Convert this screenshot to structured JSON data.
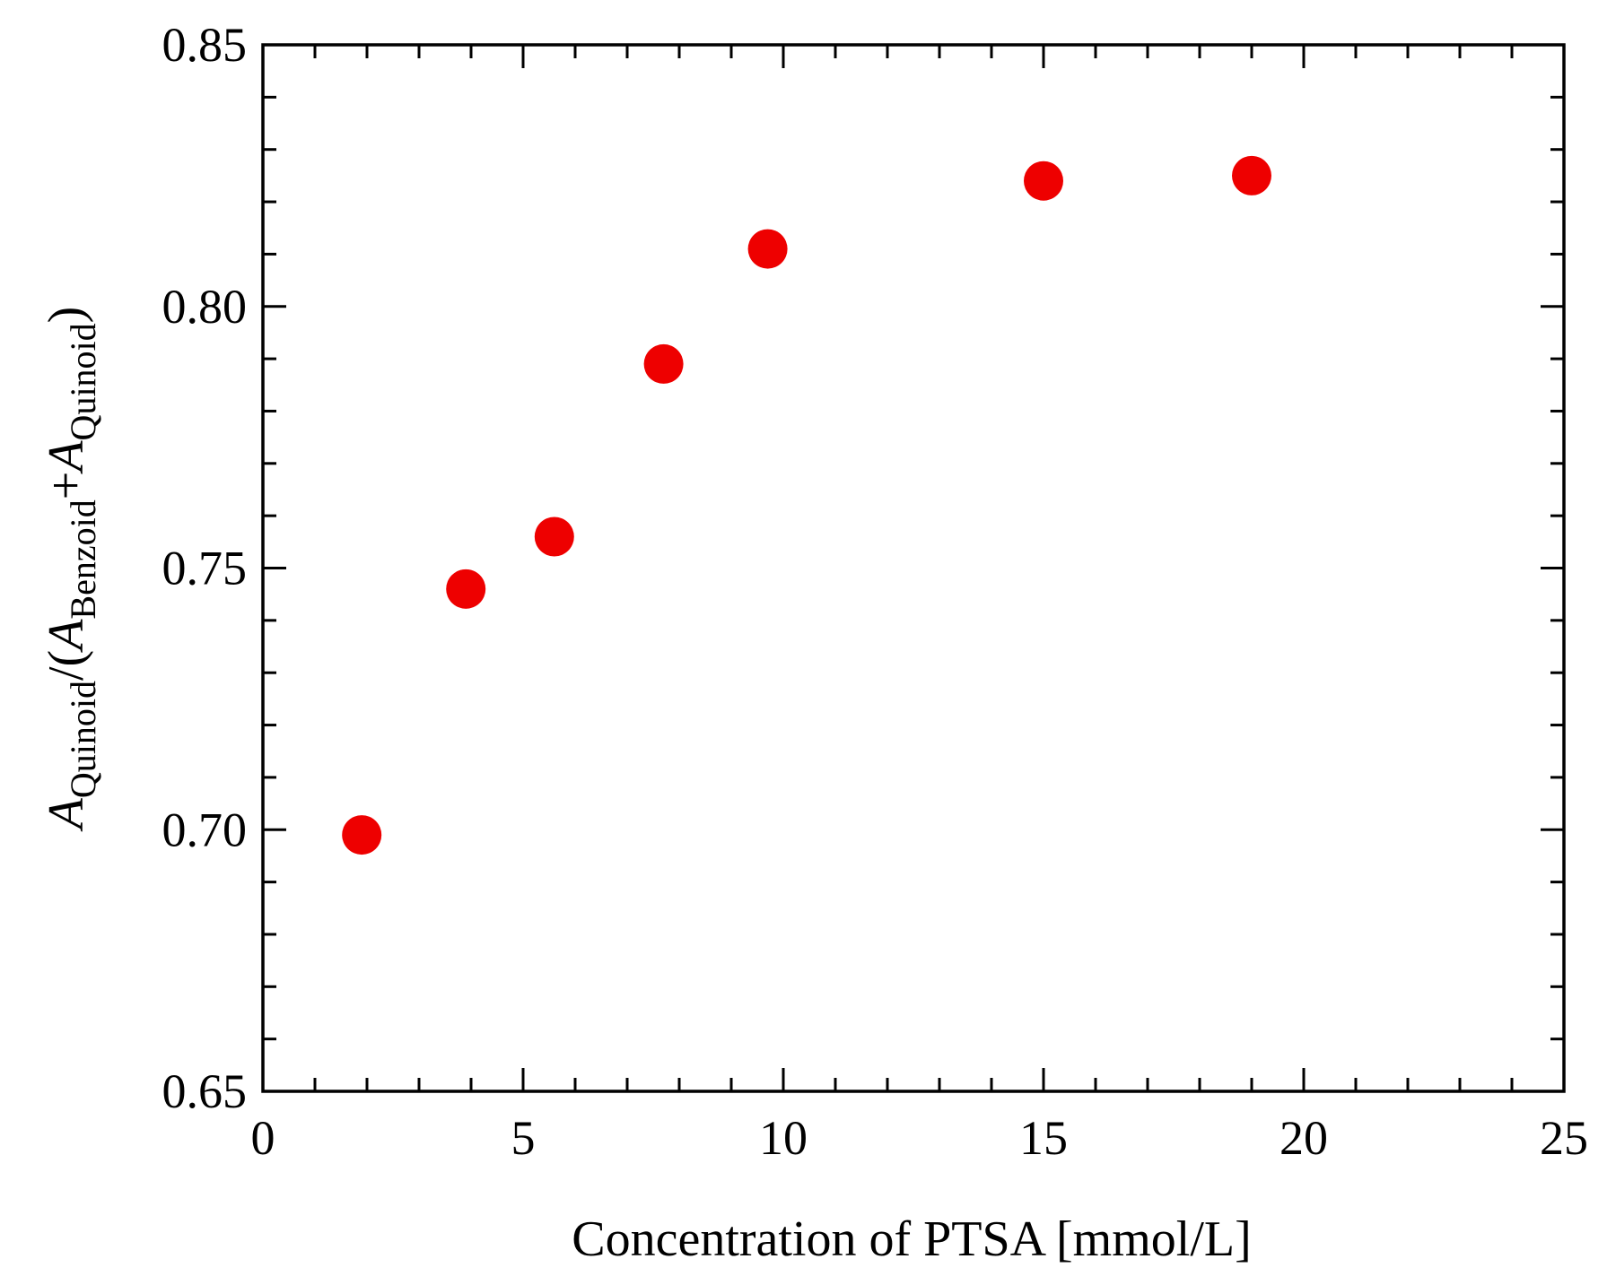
{
  "chart_data": {
    "type": "scatter",
    "title": "",
    "xlabel": "Concentration of PTSA [mmol/L]",
    "ylabel": {
      "var1": "A",
      "sub1": "Quinoid",
      "mid": "/(",
      "var2": "A",
      "sub2": "Benzoid",
      "plus": "+",
      "var3": "A",
      "sub3": "Quinoid",
      "close": ")"
    },
    "xlim": [
      0,
      25
    ],
    "ylim": [
      0.65,
      0.85
    ],
    "x_major_ticks": [
      0,
      5,
      10,
      15,
      20,
      25
    ],
    "x_tick_labels": [
      "0",
      "5",
      "10",
      "15",
      "20",
      "25"
    ],
    "x_minor_step": 1,
    "y_major_ticks": [
      0.65,
      0.7,
      0.75,
      0.8,
      0.85
    ],
    "y_tick_labels": [
      "0.65",
      "0.70",
      "0.75",
      "0.80",
      "0.85"
    ],
    "y_minor_step": 0.01,
    "grid": false,
    "series": [
      {
        "name": "A_Quinoid/(A_Benzoid+A_Quinoid)",
        "color": "#ee0000",
        "marker": "circle",
        "x": [
          1.9,
          3.9,
          5.6,
          7.7,
          9.7,
          15.0,
          19.0
        ],
        "y": [
          0.699,
          0.746,
          0.756,
          0.789,
          0.811,
          0.824,
          0.825
        ]
      }
    ]
  }
}
